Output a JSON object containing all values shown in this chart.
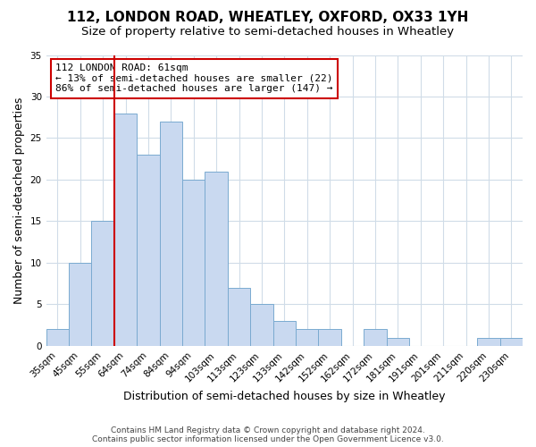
{
  "title": "112, LONDON ROAD, WHEATLEY, OXFORD, OX33 1YH",
  "subtitle": "Size of property relative to semi-detached houses in Wheatley",
  "xlabel": "Distribution of semi-detached houses by size in Wheatley",
  "ylabel": "Number of semi-detached properties",
  "categories": [
    "35sqm",
    "45sqm",
    "55sqm",
    "64sqm",
    "74sqm",
    "84sqm",
    "94sqm",
    "103sqm",
    "113sqm",
    "123sqm",
    "133sqm",
    "142sqm",
    "152sqm",
    "162sqm",
    "172sqm",
    "181sqm",
    "191sqm",
    "201sqm",
    "211sqm",
    "220sqm",
    "230sqm"
  ],
  "values": [
    2,
    10,
    15,
    28,
    23,
    27,
    20,
    21,
    7,
    5,
    3,
    2,
    2,
    0,
    2,
    1,
    0,
    0,
    0,
    1,
    1
  ],
  "bar_color": "#c9d9f0",
  "bar_edge_color": "#7aaad0",
  "red_line_index": 3,
  "annotation_text": "112 LONDON ROAD: 61sqm\n← 13% of semi-detached houses are smaller (22)\n86% of semi-detached houses are larger (147) →",
  "annotation_box_color": "white",
  "annotation_box_edge_color": "#cc0000",
  "red_line_color": "#cc0000",
  "ylim": [
    0,
    35
  ],
  "yticks": [
    0,
    5,
    10,
    15,
    20,
    25,
    30,
    35
  ],
  "footer": "Contains HM Land Registry data © Crown copyright and database right 2024.\nContains public sector information licensed under the Open Government Licence v3.0.",
  "bg_color": "#ffffff",
  "plot_bg_color": "#ffffff",
  "grid_color": "#d0dce8",
  "title_fontsize": 11,
  "subtitle_fontsize": 9.5,
  "axis_label_fontsize": 9,
  "tick_fontsize": 7.5,
  "footer_fontsize": 6.5
}
